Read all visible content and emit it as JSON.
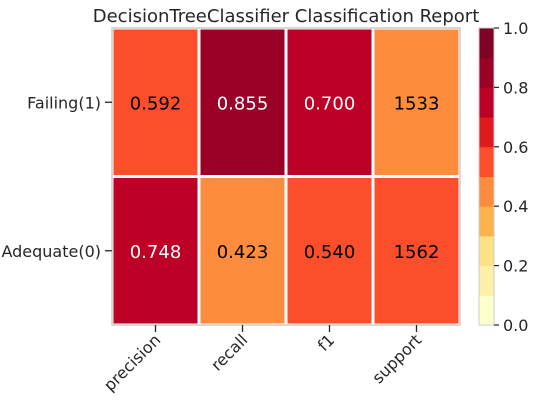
{
  "chart_data": {
    "type": "heatmap",
    "title": "DecisionTreeClassifier Classification Report",
    "rows": [
      "Failing(1)",
      "Adequate(0)"
    ],
    "columns": [
      "precision",
      "recall",
      "f1",
      "support"
    ],
    "cells": [
      [
        {
          "label": "0.592",
          "value": 0.592
        },
        {
          "label": "0.855",
          "value": 0.855
        },
        {
          "label": "0.700",
          "value": 0.7
        },
        {
          "label": "1533",
          "value": 0.495
        }
      ],
      [
        {
          "label": "0.748",
          "value": 0.748
        },
        {
          "label": "0.423",
          "value": 0.423
        },
        {
          "label": "0.540",
          "value": 0.54
        },
        {
          "label": "1562",
          "value": 0.505
        }
      ]
    ],
    "colorbar": {
      "min": 0.0,
      "max": 1.0,
      "ticks": [
        "0.0",
        "0.2",
        "0.4",
        "0.6",
        "0.8",
        "1.0"
      ],
      "levels": 10,
      "colormap": "YlOrRd"
    },
    "colors": {
      "cell_text_dark": "#000000",
      "cell_text_light": "#ffffff",
      "frame": "#cccccc",
      "cell_gap": "#ffffff"
    }
  }
}
